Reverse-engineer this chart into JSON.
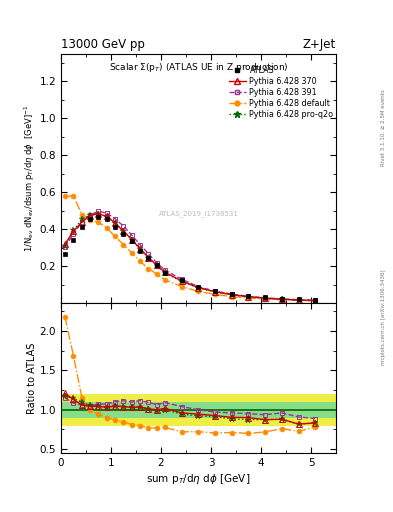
{
  "title_top": "13000 GeV pp",
  "title_right": "Z+Jet",
  "plot_title": "Scalar $\\Sigma$(p$_T$) (ATLAS UE in Z production)",
  "ylabel_main": "1/N$_{ev}$ dN$_{ev}$/dsum p$_T$/d$\\eta$ d$\\phi$  [GeV]$^{-1}$",
  "ylabel_ratio": "Ratio to ATLAS",
  "xlabel": "sum p$_T$/d$\\eta$ d$\\phi$ [GeV]",
  "right_label1": "Rivet 3.1.10, ≥ 2.5M events",
  "right_label2": "mcplots.cern.ch [arXiv:1306.3436]",
  "watermark": "ATLAS_2019_I1736531",
  "xlim": [
    0,
    5.5
  ],
  "ylim_main": [
    0.0,
    1.35
  ],
  "ylim_ratio": [
    0.45,
    2.35
  ],
  "yticks_main": [
    0.2,
    0.4,
    0.6,
    0.8,
    1.0,
    1.2
  ],
  "yticks_ratio": [
    0.5,
    1.0,
    1.5,
    2.0
  ],
  "xticks": [
    0,
    1,
    2,
    3,
    4,
    5
  ],
  "atlas_x": [
    0.08,
    0.25,
    0.42,
    0.58,
    0.75,
    0.92,
    1.08,
    1.25,
    1.42,
    1.58,
    1.75,
    1.92,
    2.08,
    2.42,
    2.75,
    3.08,
    3.42,
    3.75,
    4.08,
    4.42,
    4.75,
    5.08
  ],
  "atlas_y": [
    0.265,
    0.345,
    0.415,
    0.455,
    0.465,
    0.455,
    0.415,
    0.375,
    0.335,
    0.285,
    0.245,
    0.205,
    0.165,
    0.125,
    0.09,
    0.068,
    0.052,
    0.04,
    0.032,
    0.025,
    0.022,
    0.018
  ],
  "atlas_yerr": [
    0.01,
    0.01,
    0.01,
    0.01,
    0.01,
    0.01,
    0.01,
    0.01,
    0.01,
    0.01,
    0.01,
    0.01,
    0.008,
    0.006,
    0.005,
    0.004,
    0.003,
    0.002,
    0.002,
    0.002,
    0.002,
    0.002
  ],
  "p370_x": [
    0.08,
    0.25,
    0.42,
    0.58,
    0.75,
    0.92,
    1.08,
    1.25,
    1.42,
    1.58,
    1.75,
    1.92,
    2.08,
    2.42,
    2.75,
    3.08,
    3.42,
    3.75,
    4.08,
    4.42,
    4.75,
    5.08
  ],
  "p370_y": [
    0.32,
    0.39,
    0.44,
    0.475,
    0.485,
    0.47,
    0.435,
    0.39,
    0.345,
    0.295,
    0.248,
    0.205,
    0.168,
    0.12,
    0.085,
    0.063,
    0.047,
    0.036,
    0.028,
    0.022,
    0.018,
    0.015
  ],
  "p391_x": [
    0.08,
    0.25,
    0.42,
    0.58,
    0.75,
    0.92,
    1.08,
    1.25,
    1.42,
    1.58,
    1.75,
    1.92,
    2.08,
    2.42,
    2.75,
    3.08,
    3.42,
    3.75,
    4.08,
    4.42,
    4.75,
    5.08
  ],
  "p391_y": [
    0.305,
    0.375,
    0.44,
    0.478,
    0.498,
    0.488,
    0.458,
    0.418,
    0.368,
    0.318,
    0.268,
    0.218,
    0.18,
    0.13,
    0.09,
    0.066,
    0.05,
    0.038,
    0.03,
    0.024,
    0.02,
    0.016
  ],
  "pdef_x": [
    0.08,
    0.25,
    0.42,
    0.58,
    0.75,
    0.92,
    1.08,
    1.25,
    1.42,
    1.58,
    1.75,
    1.92,
    2.08,
    2.42,
    2.75,
    3.08,
    3.42,
    3.75,
    4.08,
    4.42,
    4.75,
    5.08
  ],
  "pdef_y": [
    0.578,
    0.582,
    0.478,
    0.452,
    0.438,
    0.408,
    0.362,
    0.318,
    0.272,
    0.228,
    0.188,
    0.158,
    0.128,
    0.09,
    0.065,
    0.048,
    0.037,
    0.028,
    0.023,
    0.019,
    0.016,
    0.014
  ],
  "pq2o_x": [
    0.08,
    0.25,
    0.42,
    0.58,
    0.75,
    0.92,
    1.08,
    1.25,
    1.42,
    1.58,
    1.75,
    1.92,
    2.08,
    2.42,
    2.75,
    3.08,
    3.42,
    3.75,
    4.08,
    4.42,
    4.75,
    5.08
  ],
  "pq2o_y": [
    0.31,
    0.395,
    0.455,
    0.48,
    0.485,
    0.468,
    0.435,
    0.39,
    0.345,
    0.295,
    0.248,
    0.202,
    0.165,
    0.118,
    0.083,
    0.062,
    0.046,
    0.035,
    0.028,
    0.022,
    0.018,
    0.015
  ],
  "gb_xedges": [
    0.0,
    1.6,
    2.4,
    5.5
  ],
  "gb_ylo": [
    0.9,
    0.9,
    0.9
  ],
  "gb_yhi": [
    1.1,
    1.1,
    1.1
  ],
  "yb_xedges": [
    0.0,
    1.6,
    2.4,
    5.5
  ],
  "yb_ylo": [
    0.8,
    0.8,
    0.8
  ],
  "yb_yhi": [
    1.2,
    1.2,
    1.2
  ],
  "color_atlas": "#000000",
  "color_p370": "#cc0000",
  "color_p391": "#993399",
  "color_pdef": "#ff8c00",
  "color_pq2o": "#006600",
  "color_green_band": "#88dd88",
  "color_yellow_band": "#eeee44"
}
